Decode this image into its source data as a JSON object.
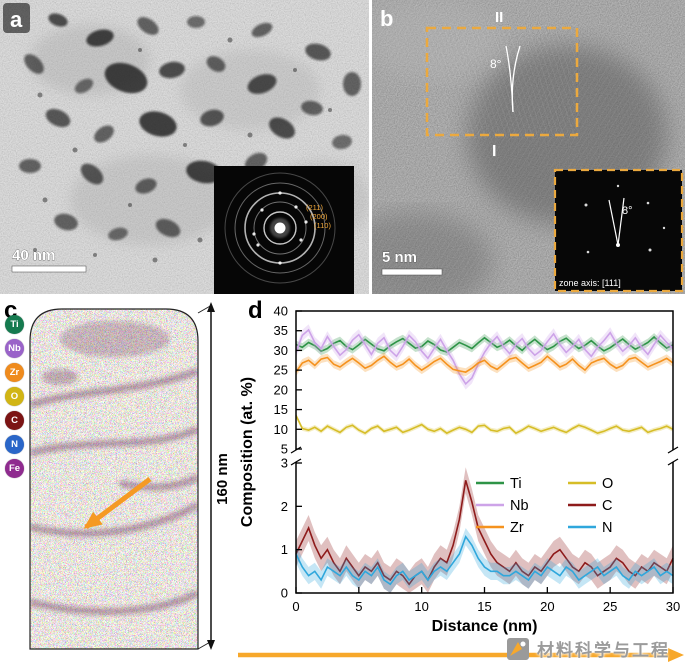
{
  "figure": {
    "panels": {
      "a": {
        "label": "a",
        "scale_bar": "40 nm",
        "inset": {
          "type": "electron-diffraction-pattern",
          "ring_labels": [
            "(211)",
            "(200)",
            "(110)"
          ]
        }
      },
      "b": {
        "label": "b",
        "grain_labels": [
          "II",
          "I"
        ],
        "misorientation": "8°",
        "scale_bar": "5 nm",
        "inset": {
          "type": "FFT",
          "angle": "8°",
          "zone_axis": "zone axis: [111]"
        }
      },
      "c": {
        "label": "c",
        "height_label": "160 nm",
        "legend": [
          {
            "symbol": "Ti",
            "color": "#157a4f"
          },
          {
            "symbol": "Nb",
            "color": "#9a63c9"
          },
          {
            "symbol": "Zr",
            "color": "#ef8b1d"
          },
          {
            "symbol": "O",
            "color": "#d1b515"
          },
          {
            "symbol": "C",
            "color": "#7c1414"
          },
          {
            "symbol": "N",
            "color": "#2a66c8"
          },
          {
            "symbol": "Fe",
            "color": "#8f2b8f"
          }
        ]
      },
      "d": {
        "label": "d"
      }
    },
    "watermark": {
      "text": "材料科学与工程"
    }
  },
  "chart_data": {
    "type": "line",
    "title": "",
    "xlabel": "Distance (nm)",
    "ylabel": "Composition (at. %)",
    "x_range": [
      0,
      30
    ],
    "x_ticks": [
      0,
      5,
      10,
      15,
      20,
      25,
      30
    ],
    "x_start": 0,
    "x_step": 0.5,
    "axis_break": {
      "top_segment_range": [
        5,
        40
      ],
      "top_ticks": [
        5,
        10,
        15,
        20,
        25,
        30,
        35,
        40
      ],
      "bottom_segment_range": [
        0,
        3
      ],
      "bottom_ticks": [
        0,
        1,
        2,
        3
      ]
    },
    "legend": {
      "position": "inside-bottom-segment",
      "columns": [
        [
          "Ti",
          "Nb",
          "Zr"
        ],
        [
          "O",
          "C",
          "N"
        ]
      ]
    },
    "series": [
      {
        "name": "Ti",
        "color": "#2e9447",
        "segment": "top",
        "band": 1.0,
        "values": [
          31.5,
          30.8,
          32.0,
          31.2,
          29.8,
          30.5,
          31.8,
          32.5,
          31.0,
          30.2,
          31.4,
          32.8,
          31.6,
          30.4,
          29.9,
          31.2,
          32.2,
          33.0,
          31.8,
          30.6,
          31.0,
          32.4,
          31.5,
          30.1,
          29.6,
          30.8,
          32.0,
          31.3,
          30.5,
          31.9,
          33.2,
          32.0,
          30.8,
          31.5,
          32.6,
          31.2,
          30.0,
          31.6,
          32.8,
          31.4,
          30.2,
          31.0,
          32.3,
          33.1,
          31.7,
          30.5,
          31.3,
          32.5,
          31.1,
          29.9,
          30.7,
          31.8,
          32.9,
          31.5,
          30.3,
          31.1,
          32.0,
          33.4,
          31.9,
          30.6,
          31.4
        ]
      },
      {
        "name": "Nb",
        "color": "#cda3e8",
        "segment": "top",
        "band": 1.4,
        "values": [
          29.5,
          33.8,
          35.2,
          32.0,
          30.5,
          33.5,
          31.0,
          28.8,
          30.2,
          32.6,
          34.0,
          31.5,
          29.0,
          31.8,
          33.2,
          30.0,
          28.5,
          31.0,
          33.8,
          32.2,
          29.8,
          28.0,
          30.5,
          32.8,
          30.0,
          27.5,
          24.0,
          21.5,
          23.0,
          26.5,
          29.5,
          31.8,
          33.5,
          31.0,
          29.2,
          31.5,
          33.0,
          30.5,
          28.8,
          30.0,
          32.2,
          34.2,
          31.5,
          29.5,
          31.0,
          32.8,
          30.2,
          28.5,
          30.8,
          32.5,
          34.5,
          31.8,
          29.8,
          31.2,
          33.2,
          30.8,
          29.0,
          31.5,
          33.8,
          32.0,
          30.5
        ]
      },
      {
        "name": "Zr",
        "color": "#f5921e",
        "segment": "top",
        "band": 1.0,
        "values": [
          24.5,
          26.8,
          27.5,
          26.2,
          27.8,
          28.2,
          26.5,
          25.8,
          27.0,
          28.0,
          26.8,
          25.5,
          26.2,
          27.5,
          28.5,
          27.0,
          25.8,
          26.5,
          27.8,
          26.2,
          25.0,
          26.0,
          27.2,
          28.0,
          26.5,
          25.2,
          24.8,
          24.5,
          25.5,
          26.8,
          27.5,
          26.0,
          25.2,
          26.5,
          27.8,
          28.2,
          26.8,
          25.5,
          26.2,
          27.0,
          28.5,
          27.2,
          25.8,
          26.5,
          27.8,
          26.2,
          25.0,
          26.8,
          27.5,
          28.0,
          26.5,
          25.5,
          26.2,
          27.8,
          28.2,
          27.0,
          25.8,
          26.5,
          27.2,
          28.0,
          26.8
        ]
      },
      {
        "name": "O",
        "color": "#d6bd27",
        "segment": "top",
        "band": 0.6,
        "values": [
          13.5,
          10.2,
          9.8,
          10.5,
          9.5,
          10.8,
          10.0,
          9.2,
          10.5,
          11.0,
          9.8,
          9.0,
          10.2,
          10.8,
          9.5,
          10.0,
          10.5,
          9.2,
          9.8,
          10.5,
          11.2,
          10.0,
          9.5,
          10.2,
          9.0,
          9.8,
          10.5,
          10.0,
          9.2,
          10.8,
          11.0,
          9.8,
          9.5,
          10.2,
          10.5,
          9.0,
          9.8,
          10.8,
          10.2,
          9.5,
          10.0,
          10.5,
          9.8,
          9.2,
          10.2,
          11.0,
          10.5,
          9.8,
          9.0,
          9.5,
          10.2,
          10.8,
          9.8,
          9.5,
          10.0,
          10.5,
          9.2,
          9.8,
          10.2,
          10.8,
          10.0
        ]
      },
      {
        "name": "C",
        "color": "#8e1b1b",
        "segment": "bottom",
        "band": 0.3,
        "values": [
          0.9,
          1.2,
          1.5,
          1.1,
          0.8,
          1.0,
          0.7,
          0.5,
          0.8,
          0.6,
          0.4,
          0.6,
          0.5,
          0.7,
          0.4,
          0.3,
          0.5,
          0.4,
          0.2,
          0.4,
          0.5,
          0.3,
          0.6,
          0.8,
          0.7,
          1.1,
          1.7,
          2.6,
          2.1,
          1.5,
          1.2,
          0.9,
          0.7,
          0.6,
          0.5,
          0.7,
          0.5,
          0.4,
          0.6,
          0.5,
          0.7,
          0.9,
          1.0,
          0.8,
          0.6,
          0.5,
          0.7,
          0.6,
          0.4,
          0.5,
          0.6,
          0.8,
          0.7,
          0.5,
          0.4,
          0.6,
          0.5,
          0.7,
          0.6,
          0.5,
          0.8
        ]
      },
      {
        "name": "N",
        "color": "#2fa7dc",
        "segment": "bottom",
        "band": 0.2,
        "values": [
          0.9,
          0.6,
          0.4,
          0.5,
          0.3,
          0.6,
          0.5,
          0.4,
          0.6,
          0.4,
          0.3,
          0.5,
          0.4,
          0.6,
          0.3,
          0.2,
          0.4,
          0.5,
          0.3,
          0.4,
          0.5,
          0.3,
          0.5,
          0.6,
          0.5,
          0.7,
          0.9,
          1.3,
          1.1,
          0.8,
          0.6,
          0.5,
          0.5,
          0.4,
          0.4,
          0.5,
          0.4,
          0.3,
          0.5,
          0.4,
          0.6,
          0.5,
          0.4,
          0.6,
          0.5,
          0.3,
          0.4,
          0.5,
          0.6,
          0.4,
          0.5,
          0.6,
          0.4,
          0.3,
          0.5,
          0.4,
          0.5,
          0.6,
          0.4,
          0.5,
          0.4
        ]
      }
    ]
  }
}
